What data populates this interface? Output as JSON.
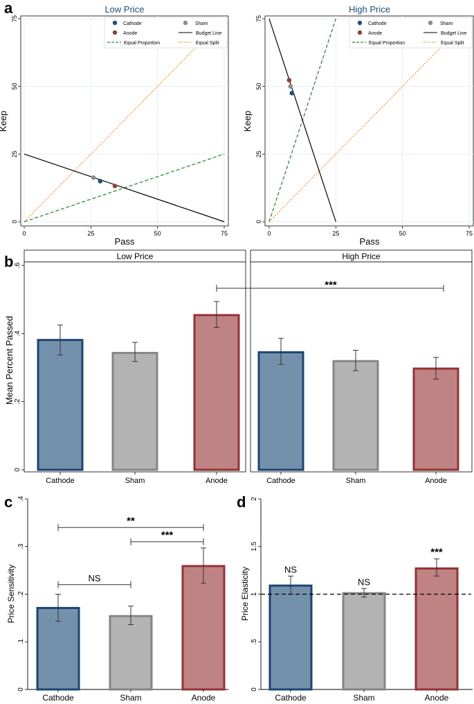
{
  "colors": {
    "cathode_fill": "#7491ac",
    "cathode_edge": "#1c4573",
    "cathode_dot": "#1f4e79",
    "sham_fill": "#b3b3b3",
    "sham_edge": "#858585",
    "sham_dot": "#8c8c8c",
    "anode_fill": "#bf8384",
    "anode_edge": "#943236",
    "anode_dot": "#9e3a3c",
    "budget": "#000000",
    "equal_prop": "#2e8b2e",
    "equal_split": "#f39c2b",
    "title_color": "#1f4e79",
    "grid": "#e9eef2"
  },
  "panels": {
    "a": {
      "letter": "a",
      "legend": {
        "cathode": "Cathode",
        "sham": "Sham",
        "anode": "Anode",
        "budget": "Budget Line",
        "equal_prop": "Equal Proportion",
        "equal_split": "Equal Split"
      },
      "xlabel": "Pass",
      "ylabel": "Keep",
      "ticks": [
        0,
        25,
        50,
        75
      ]
    },
    "b": {
      "letter": "b"
    },
    "c": {
      "letter": "c"
    },
    "d": {
      "letter": "d"
    }
  },
  "chart_data": [
    {
      "id": "a1",
      "type": "scatter",
      "title": "Low Price",
      "xlabel": "Pass",
      "ylabel": "Keep",
      "xlim": [
        0,
        75
      ],
      "ylim": [
        0,
        75
      ],
      "lines": {
        "budget": [
          [
            0,
            25
          ],
          [
            75,
            0
          ]
        ],
        "equal_proportion": [
          [
            0,
            0
          ],
          [
            75,
            25
          ]
        ],
        "equal_split": [
          [
            0,
            0
          ],
          [
            75,
            75
          ]
        ]
      },
      "points": [
        {
          "name": "Sham",
          "x": 26,
          "y": 16.3
        },
        {
          "name": "Cathode",
          "x": 28.5,
          "y": 15
        },
        {
          "name": "Anode",
          "x": 34,
          "y": 13.2
        }
      ]
    },
    {
      "id": "a2",
      "type": "scatter",
      "title": "High Price",
      "xlabel": "Pass",
      "ylabel": "Keep",
      "xlim": [
        0,
        75
      ],
      "ylim": [
        0,
        75
      ],
      "lines": {
        "budget": [
          [
            0,
            75
          ],
          [
            25,
            0
          ]
        ],
        "equal_proportion": [
          [
            0,
            0
          ],
          [
            25,
            75
          ]
        ],
        "equal_split": [
          [
            0,
            0
          ],
          [
            75,
            75
          ]
        ]
      },
      "points": [
        {
          "name": "Anode",
          "x": 7.5,
          "y": 52.3
        },
        {
          "name": "Sham",
          "x": 8,
          "y": 50
        },
        {
          "name": "Cathode",
          "x": 8.5,
          "y": 47.5
        }
      ]
    },
    {
      "id": "b",
      "type": "bar",
      "ylabel": "Mean Percent Passed",
      "ylim": [
        0,
        0.6
      ],
      "yticks": [
        0,
        0.2,
        0.4,
        0.6
      ],
      "ytick_labels": [
        "0",
        ".2",
        ".4",
        ".6"
      ],
      "facets": [
        {
          "title": "Low Price",
          "categories": [
            "Cathode",
            "Sham",
            "Anode"
          ],
          "values": [
            0.381,
            0.343,
            0.454
          ],
          "ci_low": [
            0.337,
            0.318,
            0.418
          ],
          "ci_high": [
            0.425,
            0.374,
            0.494
          ]
        },
        {
          "title": "High Price",
          "categories": [
            "Cathode",
            "Sham",
            "Anode"
          ],
          "values": [
            0.345,
            0.319,
            0.297
          ],
          "ci_low": [
            0.309,
            0.291,
            0.266
          ],
          "ci_high": [
            0.386,
            0.351,
            0.33
          ]
        }
      ],
      "annotations": [
        {
          "from": "Low Price Anode",
          "to": "High Price Anode",
          "label": "***"
        }
      ]
    },
    {
      "id": "c",
      "type": "bar",
      "ylabel": "Price Sensitivity",
      "ylim": [
        0,
        0.4
      ],
      "yticks": [
        0,
        0.1,
        0.2,
        0.3,
        0.4
      ],
      "ytick_labels": [
        "0",
        ".1",
        ".2",
        ".3",
        ".4"
      ],
      "categories": [
        "Cathode",
        "Sham",
        "Anode"
      ],
      "values": [
        0.171,
        0.154,
        0.259
      ],
      "ci_low": [
        0.143,
        0.136,
        0.223
      ],
      "ci_high": [
        0.2,
        0.175,
        0.297
      ],
      "brackets": [
        {
          "from": 0,
          "to": 1,
          "y": 0.22,
          "label": "NS"
        },
        {
          "from": 1,
          "to": 2,
          "y": 0.31,
          "label": "***"
        },
        {
          "from": 0,
          "to": 2,
          "y": 0.34,
          "label": "**"
        }
      ]
    },
    {
      "id": "d",
      "type": "bar",
      "ylabel": "Price Elasticity",
      "ylim": [
        0,
        2
      ],
      "yticks": [
        0,
        0.5,
        1,
        1.5,
        2
      ],
      "ytick_labels": [
        "0",
        ".5",
        "1",
        "1.5",
        "2"
      ],
      "categories": [
        "Cathode",
        "Sham",
        "Anode"
      ],
      "values": [
        1.09,
        1.01,
        1.27
      ],
      "ci_low": [
        1.0,
        0.97,
        1.19
      ],
      "ci_high": [
        1.19,
        1.06,
        1.37
      ],
      "reference_line": 1,
      "labels": [
        "NS",
        "NS",
        "***"
      ]
    }
  ]
}
